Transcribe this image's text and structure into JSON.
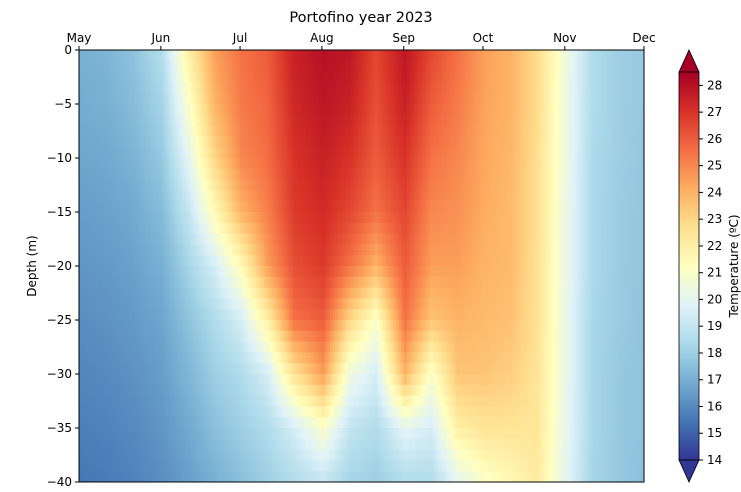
{
  "chart_data": {
    "type": "heatmap",
    "title": "Portofino year 2023",
    "ylabel": "Depth (m)",
    "xlabel": "",
    "colorbar_label": "Temperature (ºC)",
    "x_ticks": [
      "May",
      "Jun",
      "Jul",
      "Aug",
      "Sep",
      "Oct",
      "Nov",
      "Dec"
    ],
    "x_range": [
      "2023-05-01",
      "2023-12-01"
    ],
    "y_ticks": [
      0,
      -5,
      -10,
      -15,
      -20,
      -25,
      -30,
      -35,
      -40
    ],
    "ylim": [
      -40,
      0
    ],
    "colorbar_ticks": [
      14,
      15,
      16,
      17,
      18,
      19,
      20,
      21,
      22,
      23,
      24,
      25,
      26,
      27,
      28
    ],
    "color_range": [
      14,
      28.5
    ],
    "colormap": "RdYlBu_r",
    "colormap_stops": [
      "#313695",
      "#4575b4",
      "#74add1",
      "#abd9e9",
      "#e0f3f8",
      "#ffffbf",
      "#fee090",
      "#fdae61",
      "#f46d43",
      "#d73027",
      "#a50026"
    ],
    "depths_m": [
      0,
      -5,
      -10,
      -15,
      -20,
      -25,
      -30,
      -35,
      -40
    ],
    "dates": [
      "2023-05-01",
      "2023-05-11",
      "2023-05-21",
      "2023-06-01",
      "2023-06-11",
      "2023-06-21",
      "2023-07-01",
      "2023-07-11",
      "2023-07-21",
      "2023-08-01",
      "2023-08-11",
      "2023-08-21",
      "2023-09-01",
      "2023-09-11",
      "2023-09-21",
      "2023-10-01",
      "2023-10-11",
      "2023-10-21",
      "2023-11-01",
      "2023-11-11",
      "2023-11-21",
      "2023-12-01"
    ],
    "temperature_profiles": [
      [
        17.0,
        16.9,
        16.7,
        16.5,
        16.3,
        16.1,
        15.9,
        15.7,
        15.5
      ],
      [
        17.2,
        17.0,
        16.8,
        16.6,
        16.4,
        16.2,
        16.0,
        15.8,
        15.6
      ],
      [
        17.6,
        17.4,
        17.1,
        16.8,
        16.6,
        16.4,
        16.2,
        16.0,
        15.8
      ],
      [
        18.6,
        18.2,
        17.8,
        17.4,
        17.0,
        16.7,
        16.5,
        16.3,
        16.1
      ],
      [
        22.0,
        21.0,
        20.0,
        19.0,
        18.2,
        17.6,
        17.2,
        16.8,
        16.5
      ],
      [
        24.5,
        24.0,
        23.0,
        21.5,
        19.5,
        18.5,
        18.0,
        17.5,
        17.0
      ],
      [
        25.5,
        25.3,
        25.0,
        24.0,
        21.5,
        19.5,
        18.5,
        18.0,
        17.5
      ],
      [
        26.0,
        25.8,
        25.6,
        25.2,
        24.5,
        22.0,
        19.5,
        18.5,
        18.0
      ],
      [
        27.5,
        27.3,
        27.0,
        26.8,
        26.3,
        25.5,
        22.5,
        19.5,
        18.5
      ],
      [
        28.0,
        27.8,
        27.5,
        27.2,
        26.8,
        26.0,
        24.5,
        21.0,
        19.0
      ],
      [
        27.8,
        27.5,
        27.0,
        26.5,
        25.5,
        23.0,
        20.5,
        19.0,
        18.2
      ],
      [
        26.5,
        26.3,
        26.0,
        25.5,
        24.0,
        21.0,
        19.5,
        18.5,
        18.0
      ],
      [
        27.8,
        27.5,
        27.0,
        26.5,
        26.0,
        25.5,
        24.0,
        20.0,
        18.5
      ],
      [
        26.5,
        26.0,
        25.5,
        25.0,
        24.5,
        23.5,
        21.0,
        19.5,
        18.5
      ],
      [
        25.5,
        25.3,
        25.0,
        24.8,
        24.5,
        24.0,
        23.5,
        22.0,
        20.0
      ],
      [
        24.5,
        24.4,
        24.3,
        24.2,
        24.0,
        23.8,
        23.5,
        22.5,
        21.0
      ],
      [
        24.0,
        24.0,
        23.9,
        23.8,
        23.8,
        23.6,
        23.2,
        22.5,
        21.5
      ],
      [
        22.8,
        22.8,
        22.7,
        22.7,
        22.6,
        22.6,
        22.5,
        22.4,
        22.2
      ],
      [
        20.5,
        20.4,
        20.4,
        20.3,
        20.3,
        20.2,
        20.2,
        20.1,
        20.0
      ],
      [
        18.5,
        18.5,
        18.4,
        18.4,
        18.4,
        18.3,
        18.3,
        18.3,
        18.2
      ],
      [
        18.0,
        18.0,
        18.0,
        17.9,
        17.9,
        17.9,
        17.8,
        17.8,
        17.8
      ],
      [
        17.8,
        17.8,
        17.7,
        17.7,
        17.7,
        17.6,
        17.6,
        17.6,
        17.5
      ]
    ]
  }
}
